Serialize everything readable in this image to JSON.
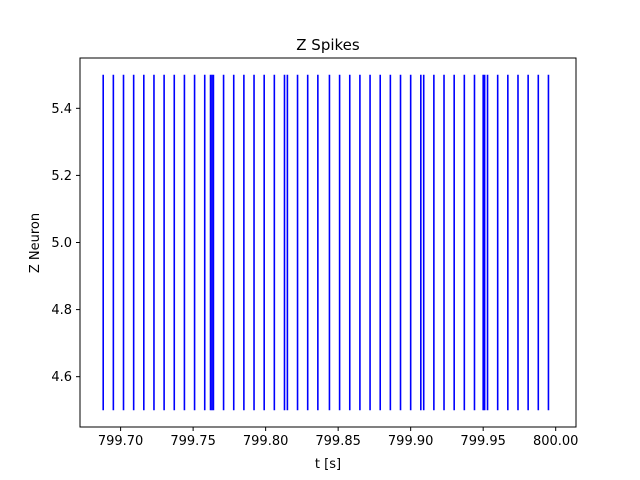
{
  "chart_data": {
    "type": "event-raster",
    "title": "Z Spikes",
    "xlabel": "t [s]",
    "ylabel": "Z Neuron",
    "xlim": [
      799.672,
      800.014
    ],
    "ylim": [
      4.45,
      5.55
    ],
    "x_ticks": [
      799.7,
      799.75,
      799.8,
      799.85,
      799.9,
      799.95,
      800.0
    ],
    "x_tick_labels": [
      "799.70",
      "799.75",
      "799.80",
      "799.85",
      "799.90",
      "799.95",
      "800.00"
    ],
    "y_ticks": [
      4.6,
      4.8,
      5.0,
      5.2,
      5.4
    ],
    "y_tick_labels": [
      "4.6",
      "4.8",
      "5.0",
      "5.2",
      "5.4"
    ],
    "line_range": [
      4.5,
      5.5
    ],
    "color": "#0000ff",
    "grid": false,
    "spike_times": [
      799.688,
      799.695,
      799.702,
      799.709,
      799.716,
      799.723,
      799.73,
      799.737,
      799.744,
      799.751,
      799.758,
      799.762,
      799.763,
      799.764,
      799.771,
      799.778,
      799.785,
      799.792,
      799.799,
      799.806,
      799.813,
      799.815,
      799.822,
      799.829,
      799.836,
      799.844,
      799.851,
      799.858,
      799.865,
      799.872,
      799.879,
      799.886,
      799.893,
      799.9,
      799.907,
      799.909,
      799.916,
      799.923,
      799.93,
      799.937,
      799.944,
      799.95,
      799.951,
      799.953,
      799.96,
      799.967,
      799.974,
      799.981,
      799.988,
      799.995
    ]
  }
}
